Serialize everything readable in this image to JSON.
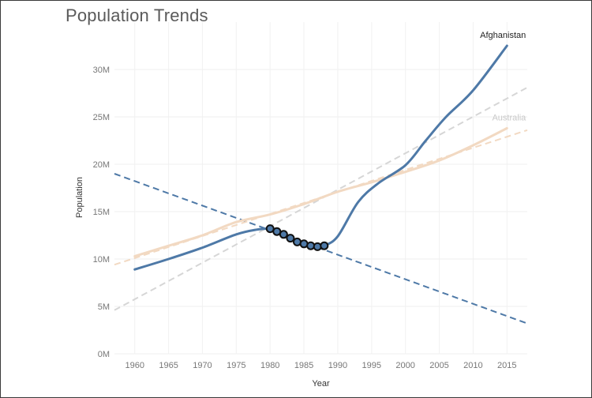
{
  "chart_data": {
    "type": "line",
    "title": "Population Trends",
    "xlabel": "Year",
    "ylabel": "Population",
    "xlim": [
      1957,
      2018
    ],
    "ylim": [
      0,
      35000000
    ],
    "x_ticks": [
      1960,
      1965,
      1970,
      1975,
      1980,
      1985,
      1990,
      1995,
      2000,
      2005,
      2010,
      2015
    ],
    "y_ticks": [
      {
        "value": 0,
        "label": "0M"
      },
      {
        "value": 5000000,
        "label": "5M"
      },
      {
        "value": 10000000,
        "label": "10M"
      },
      {
        "value": 15000000,
        "label": "15M"
      },
      {
        "value": 20000000,
        "label": "20M"
      },
      {
        "value": 25000000,
        "label": "25M"
      },
      {
        "value": 30000000,
        "label": "30M"
      }
    ],
    "grid": true,
    "series": [
      {
        "name": "Afghanistan",
        "color": "#4e79a7",
        "label_color": "#222222",
        "x": [
          1960,
          1965,
          1970,
          1975,
          1978,
          1980,
          1981,
          1982,
          1983,
          1984,
          1985,
          1986,
          1987,
          1988,
          1990,
          1993,
          1996,
          2000,
          2003,
          2006,
          2010,
          2015
        ],
        "y": [
          8900000,
          10000000,
          11200000,
          12600000,
          13100000,
          13200000,
          12900000,
          12600000,
          12200000,
          11800000,
          11600000,
          11400000,
          11300000,
          11400000,
          12400000,
          16000000,
          18000000,
          19900000,
          22500000,
          25000000,
          27800000,
          32500000
        ],
        "highlight_x": [
          1980,
          1981,
          1982,
          1983,
          1984,
          1985,
          1986,
          1987,
          1988
        ]
      },
      {
        "name": "Australia",
        "color": "#f2d9c2",
        "label_color": "#c8c8c8",
        "x": [
          1960,
          1965,
          1970,
          1975,
          1980,
          1985,
          1990,
          1995,
          2000,
          2005,
          2010,
          2015
        ],
        "y": [
          10300000,
          11400000,
          12500000,
          13900000,
          14700000,
          15800000,
          17100000,
          18100000,
          19200000,
          20400000,
          22000000,
          23800000
        ]
      }
    ],
    "trend_lines": [
      {
        "series": "Afghanistan",
        "color": "#4e79a7",
        "x": [
          1957,
          2018
        ],
        "y": [
          19000000,
          3200000
        ]
      },
      {
        "series": "Australia",
        "color": "#f2d9c2",
        "x": [
          1957,
          2018
        ],
        "y": [
          9400000,
          23600000
        ]
      },
      {
        "series": "All",
        "color": "#d6d6d6",
        "x": [
          1957,
          2018
        ],
        "y": [
          4600000,
          28100000
        ]
      }
    ]
  }
}
